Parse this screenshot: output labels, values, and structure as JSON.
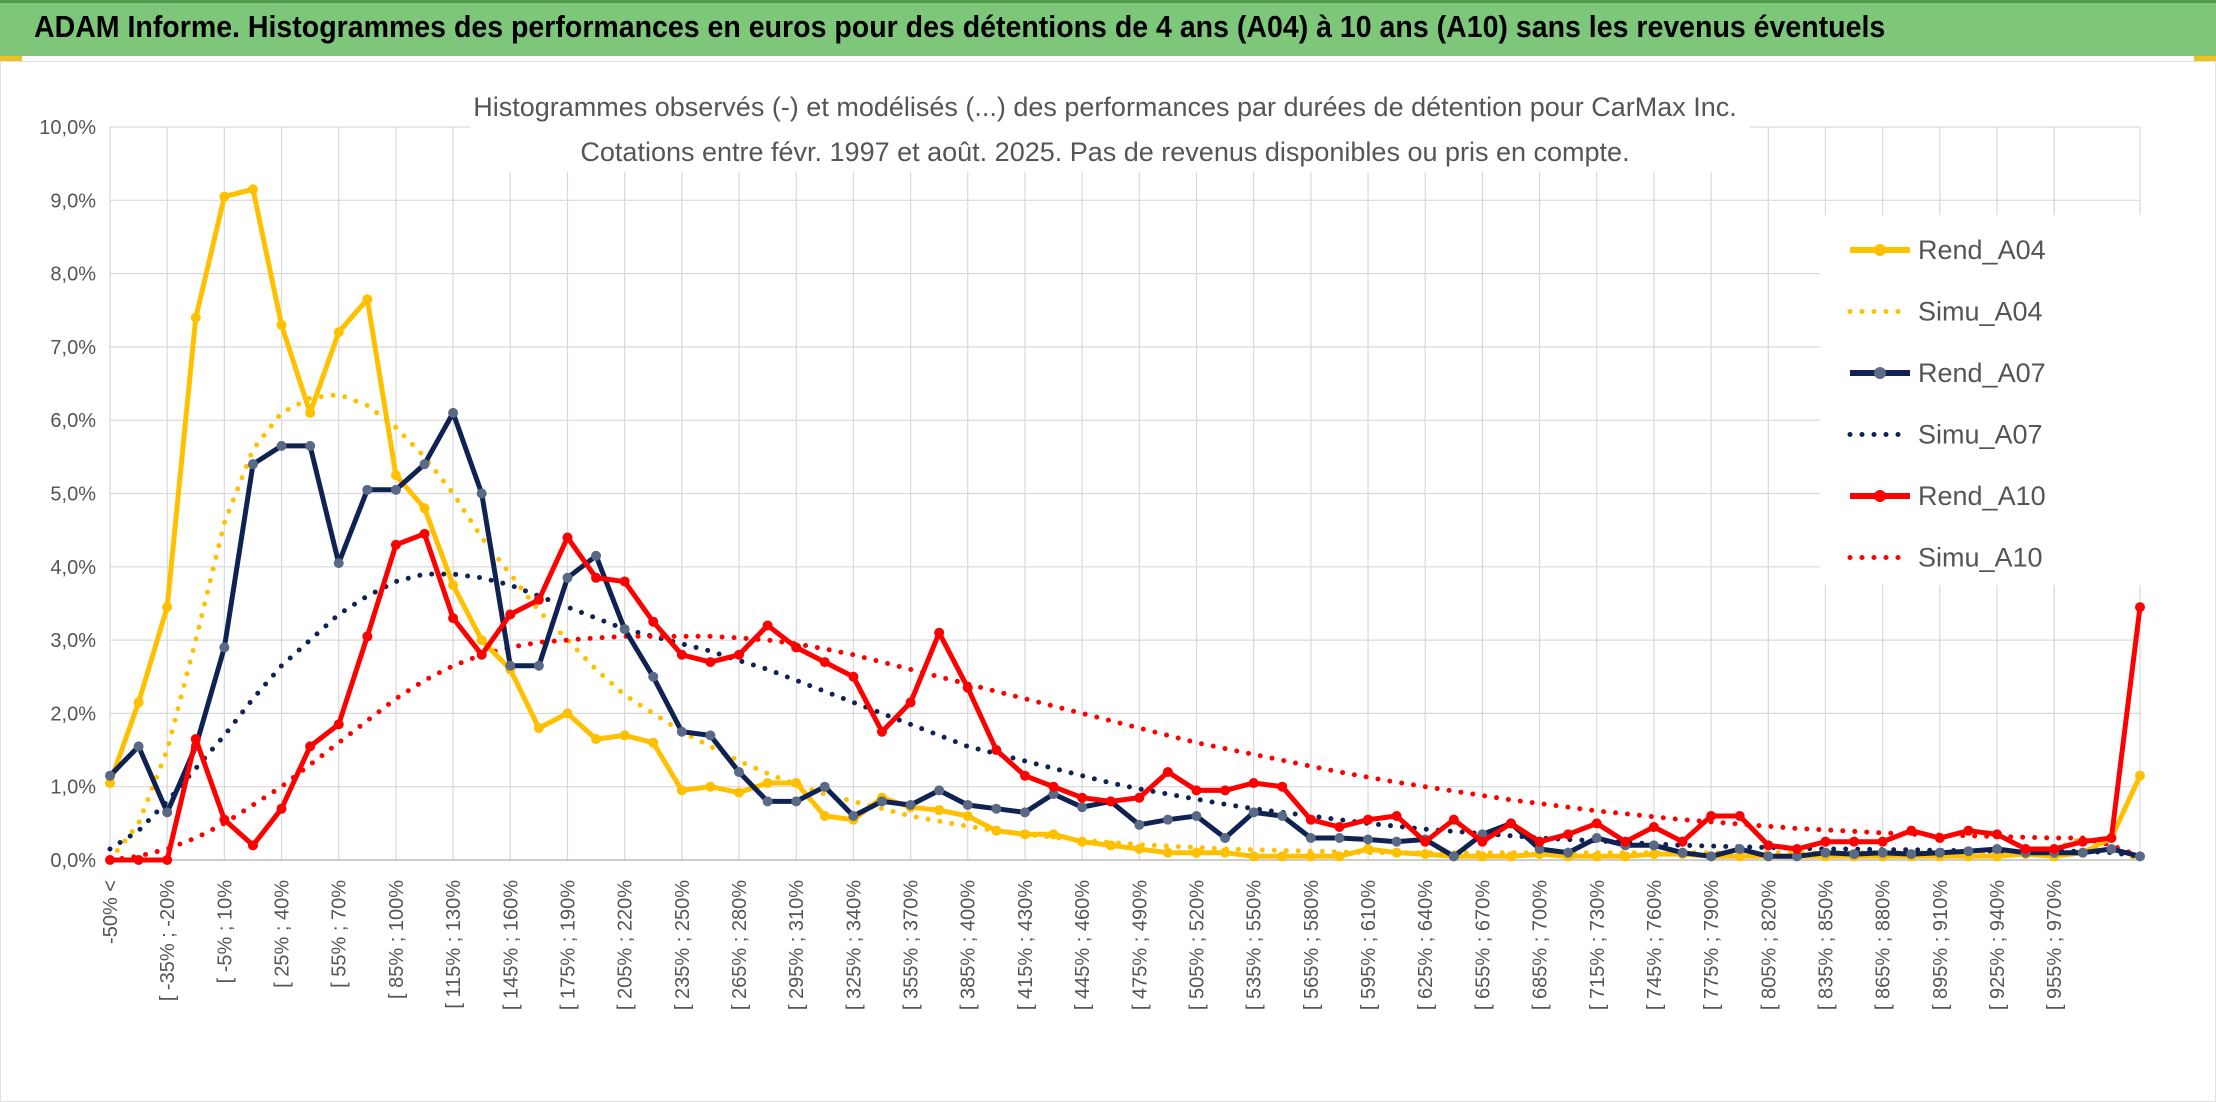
{
  "header": {
    "title": "ADAM Informe. Histogrammes des performances en euros pour des détentions de 4 ans (A04) à 10 ans (A10) sans les revenus éventuels"
  },
  "chart_data": {
    "type": "line",
    "title": "Histogrammes observés (-) et modélisés (...) des performances par durées de détention pour CarMax Inc.",
    "subtitle": "Cotations entre févr. 1997 et août. 2025. Pas de revenus disponibles ou pris en compte.",
    "xlabel": "",
    "ylabel": "",
    "ylim": [
      0,
      10
    ],
    "y_ticks": [
      "0,0%",
      "1,0%",
      "2,0%",
      "3,0%",
      "4,0%",
      "5,0%",
      "6,0%",
      "7,0%",
      "8,0%",
      "9,0%",
      "10,0%"
    ],
    "grid": true,
    "legend_position": "right",
    "x_tick_labels": [
      "-50% <",
      "[ -35% ; -20%",
      "[ -5% ; 10%",
      "[ 25% ; 40%",
      "[ 55% ; 70%",
      "[ 85% ; 100%",
      "[ 115% ; 130%",
      "[ 145% ; 160%",
      "[ 175% ; 190%",
      "[ 205% ; 220%",
      "[ 235% ; 250%",
      "[ 265% ; 280%",
      "[ 295% ; 310%",
      "[ 325% ; 340%",
      "[ 355% ; 370%",
      "[ 385% ; 400%",
      "[ 415% ; 430%",
      "[ 445% ; 460%",
      "[ 475% ; 490%",
      "[ 505% ; 520%",
      "[ 535% ; 550%",
      "[ 565% ; 580%",
      "[ 595% ; 610%",
      "[ 625% ; 640%",
      "[ 655% ; 670%",
      "[ 685% ; 700%",
      "[ 715% ; 730%",
      "[ 745% ; 760%",
      "[ 775% ; 790%",
      "[ 805% ; 820%",
      "[ 835% ; 850%",
      "[ 865% ; 880%",
      "[ 895% ; 910%",
      "[ 925% ; 940%",
      "[ 955% ; 970%"
    ],
    "series": [
      {
        "name": "Rend_A04",
        "color": "#ffc000",
        "style": "solid",
        "markers": true,
        "values": [
          1.05,
          2.15,
          3.45,
          7.4,
          9.05,
          9.15,
          7.3,
          6.1,
          7.2,
          7.65,
          5.25,
          4.8,
          3.75,
          3.0,
          2.6,
          1.8,
          2.0,
          1.65,
          1.7,
          1.6,
          0.95,
          1.0,
          0.92,
          1.05,
          1.05,
          0.6,
          0.55,
          0.85,
          0.72,
          0.68,
          0.6,
          0.4,
          0.35,
          0.35,
          0.25,
          0.2,
          0.15,
          0.1,
          0.1,
          0.1,
          0.05,
          0.05,
          0.05,
          0.05,
          0.15,
          0.1,
          0.08,
          0.05,
          0.05,
          0.05,
          0.08,
          0.05,
          0.05,
          0.05,
          0.08,
          0.08,
          0.05,
          0.05,
          0.05,
          0.05,
          0.05,
          0.05,
          0.05,
          0.05,
          0.05,
          0.05,
          0.05,
          0.08,
          0.05,
          0.1,
          0.3,
          1.15
        ]
      },
      {
        "name": "Simu_A04",
        "color": "#ffc000",
        "style": "dotted",
        "markers": false,
        "values": [
          0.0,
          0.5,
          1.5,
          3.0,
          4.6,
          5.6,
          6.1,
          6.3,
          6.35,
          6.2,
          5.9,
          5.5,
          5.0,
          4.4,
          3.9,
          3.4,
          3.0,
          2.6,
          2.25,
          2.0,
          1.75,
          1.55,
          1.35,
          1.18,
          1.03,
          0.9,
          0.8,
          0.7,
          0.6,
          0.53,
          0.46,
          0.4,
          0.35,
          0.31,
          0.27,
          0.24,
          0.21,
          0.19,
          0.17,
          0.15,
          0.14,
          0.13,
          0.12,
          0.11,
          0.1,
          0.1,
          0.1,
          0.1,
          0.1,
          0.1,
          0.1,
          0.1,
          0.1,
          0.1,
          0.1,
          0.1,
          0.1,
          0.1,
          0.1,
          0.1,
          0.1,
          0.1,
          0.1,
          0.1,
          0.1,
          0.1,
          0.1,
          0.1,
          0.15,
          0.3,
          0.15,
          0.0
        ]
      },
      {
        "name": "Rend_A07",
        "color": "#0f2252",
        "style": "solid",
        "markers": true,
        "values": [
          1.15,
          1.55,
          0.65,
          1.55,
          2.9,
          5.4,
          5.65,
          5.65,
          4.05,
          5.05,
          5.05,
          5.4,
          6.1,
          5.0,
          2.65,
          2.65,
          3.85,
          4.15,
          3.15,
          2.5,
          1.75,
          1.7,
          1.2,
          0.8,
          0.8,
          1.0,
          0.6,
          0.8,
          0.75,
          0.95,
          0.75,
          0.7,
          0.65,
          0.9,
          0.72,
          0.8,
          0.48,
          0.55,
          0.6,
          0.3,
          0.65,
          0.6,
          0.3,
          0.3,
          0.28,
          0.25,
          0.28,
          0.05,
          0.35,
          0.5,
          0.15,
          0.1,
          0.3,
          0.2,
          0.2,
          0.1,
          0.05,
          0.15,
          0.05,
          0.05,
          0.1,
          0.08,
          0.1,
          0.08,
          0.1,
          0.12,
          0.15,
          0.1,
          0.1,
          0.1,
          0.15,
          0.05
        ]
      },
      {
        "name": "Simu_A07",
        "color": "#0f2252",
        "style": "dotted",
        "markers": false,
        "values": [
          0.15,
          0.4,
          0.8,
          1.25,
          1.7,
          2.2,
          2.65,
          3.0,
          3.35,
          3.6,
          3.8,
          3.9,
          3.9,
          3.85,
          3.75,
          3.6,
          3.45,
          3.3,
          3.15,
          3.05,
          2.95,
          2.85,
          2.72,
          2.6,
          2.45,
          2.3,
          2.15,
          2.0,
          1.85,
          1.7,
          1.55,
          1.45,
          1.35,
          1.25,
          1.15,
          1.05,
          0.97,
          0.9,
          0.83,
          0.76,
          0.7,
          0.65,
          0.6,
          0.55,
          0.5,
          0.46,
          0.42,
          0.39,
          0.36,
          0.33,
          0.3,
          0.28,
          0.26,
          0.24,
          0.22,
          0.2,
          0.19,
          0.18,
          0.17,
          0.16,
          0.15,
          0.15,
          0.14,
          0.14,
          0.13,
          0.13,
          0.12,
          0.12,
          0.12,
          0.12,
          0.1,
          0.05
        ]
      },
      {
        "name": "Rend_A10",
        "color": "#ff0000",
        "style": "solid",
        "markers": true,
        "values": [
          0.0,
          0.0,
          0.0,
          1.65,
          0.55,
          0.2,
          0.7,
          1.55,
          1.85,
          3.05,
          4.3,
          4.45,
          3.3,
          2.8,
          3.35,
          3.55,
          4.4,
          3.85,
          3.8,
          3.25,
          2.8,
          2.7,
          2.8,
          3.2,
          2.9,
          2.7,
          2.5,
          1.75,
          2.15,
          3.1,
          2.35,
          1.5,
          1.15,
          1.0,
          0.85,
          0.8,
          0.85,
          1.2,
          0.95,
          0.95,
          1.05,
          1.0,
          0.55,
          0.45,
          0.55,
          0.6,
          0.25,
          0.55,
          0.25,
          0.5,
          0.25,
          0.35,
          0.5,
          0.25,
          0.45,
          0.25,
          0.6,
          0.6,
          0.2,
          0.15,
          0.25,
          0.25,
          0.25,
          0.4,
          0.3,
          0.4,
          0.35,
          0.15,
          0.15,
          0.25,
          0.3,
          3.45
        ]
      },
      {
        "name": "Simu_A10",
        "color": "#ff0000",
        "style": "dotted",
        "markers": false,
        "values": [
          0.0,
          0.05,
          0.15,
          0.3,
          0.5,
          0.75,
          1.0,
          1.3,
          1.6,
          1.9,
          2.2,
          2.45,
          2.65,
          2.8,
          2.9,
          2.97,
          3.0,
          3.03,
          3.05,
          3.05,
          3.05,
          3.05,
          3.03,
          3.0,
          2.95,
          2.88,
          2.8,
          2.7,
          2.6,
          2.5,
          2.4,
          2.3,
          2.2,
          2.1,
          2.0,
          1.9,
          1.8,
          1.7,
          1.6,
          1.52,
          1.44,
          1.36,
          1.28,
          1.2,
          1.13,
          1.06,
          1.0,
          0.94,
          0.88,
          0.82,
          0.77,
          0.72,
          0.67,
          0.63,
          0.59,
          0.55,
          0.52,
          0.49,
          0.46,
          0.43,
          0.41,
          0.39,
          0.37,
          0.35,
          0.34,
          0.33,
          0.32,
          0.31,
          0.3,
          0.3,
          0.2,
          0.05
        ]
      }
    ]
  }
}
